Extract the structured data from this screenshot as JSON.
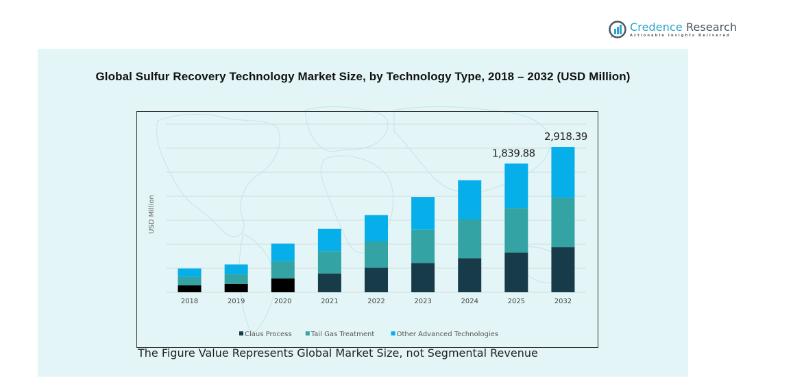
{
  "brand": {
    "name_part1": "Credence",
    "name_part2": " Research",
    "tagline": "Actionable Insights Delivered",
    "color": "#2aa4c8"
  },
  "footnote": "The Figure Value Represents Global Market Size, not Segmental Revenue",
  "chart_data": {
    "type": "bar",
    "stacked": true,
    "title": "Global Sulfur Recovery Technology Market Size, by Technology Type, 2018 – 2032 (USD Million)",
    "xlabel": "",
    "ylabel": "USD Million",
    "categories": [
      "2018",
      "2019",
      "2020",
      "2021",
      "2022",
      "2023",
      "2024",
      "2025",
      "2032"
    ],
    "ylim": [
      0,
      3400
    ],
    "grid": true,
    "gridline_count": 7,
    "legend_position": "bottom",
    "series": [
      {
        "name": "Claus Process",
        "color": "#173b48",
        "values": [
          140,
          168,
          279,
          377,
          489,
          586,
          684,
          796,
          907
        ],
        "color_overrides": {
          "2018": "#000000",
          "2019": "#000000",
          "2020": "#000000"
        }
      },
      {
        "name": "Tail Gas Treatment",
        "color": "#33a3a3",
        "values": [
          168,
          195,
          349,
          447,
          530,
          670,
          782,
          893,
          991
        ]
      },
      {
        "name": "Other Advanced Technologies",
        "color": "#06aeea",
        "values": [
          168,
          195,
          349,
          447,
          530,
          656,
          782,
          893,
          1020
        ]
      }
    ],
    "annotations": [
      {
        "category": "2025",
        "text": "1,839.88"
      },
      {
        "category": "2032",
        "text": "2,918.39"
      }
    ]
  }
}
